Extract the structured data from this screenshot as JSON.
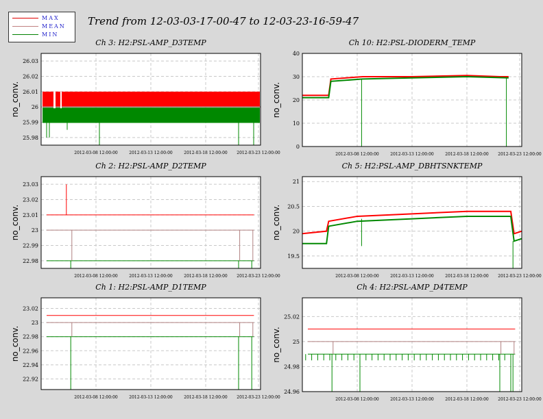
{
  "title": "Trend from 12-03-03-17-00-47 to 12-03-23-16-59-47",
  "legend": [
    {
      "label": "MAX",
      "color": "#e00000"
    },
    {
      "label": "MEAN",
      "color": "#c08080"
    },
    {
      "label": "MIN",
      "color": "#008000"
    }
  ],
  "colors": {
    "max": "#ff0000",
    "mean": "#b08080",
    "min": "#008800",
    "grid": "#c8c8c8"
  },
  "x_ticks": [
    "2012-03-08 12:00:00",
    "2012-03-13 12:00:00",
    "2012-03-18 12:00:00",
    "2012-03-23 12:00:00"
  ],
  "chart_data": [
    {
      "type": "line",
      "title": "Ch 3: H2:PSL-AMP_D3TEMP",
      "ylabel": "no_conv.",
      "ylim": [
        25.975,
        26.035
      ],
      "yticks": [
        "25.98",
        "25.99",
        "26",
        "26.01",
        "26.02",
        "26.03"
      ],
      "series": [
        {
          "name": "MAX",
          "values": [
            [
              0,
              26.01
            ],
            [
              20,
              26.01
            ]
          ]
        },
        {
          "name": "MEAN",
          "values": [
            [
              0,
              26.0
            ],
            [
              20,
              26.0
            ]
          ]
        },
        {
          "name": "MIN",
          "values": [
            [
              0,
              25.99
            ],
            [
              20,
              25.99
            ]
          ]
        }
      ],
      "style": "band"
    },
    {
      "type": "line",
      "title": "Ch 10: H2:PSL-DIODERM_TEMP",
      "ylabel": "no_conv.",
      "ylim": [
        0,
        40
      ],
      "yticks": [
        "0",
        "10",
        "20",
        "30",
        "40"
      ],
      "series": [
        {
          "name": "MAX",
          "values": [
            [
              0,
              22
            ],
            [
              2.4,
              22
            ],
            [
              2.6,
              29
            ],
            [
              5.5,
              30
            ],
            [
              10,
              30
            ],
            [
              15,
              30.5
            ],
            [
              18,
              30
            ],
            [
              18.8,
              30
            ]
          ]
        },
        {
          "name": "MIN",
          "values": [
            [
              0,
              21
            ],
            [
              2.4,
              21
            ],
            [
              2.6,
              28
            ],
            [
              5.5,
              29
            ],
            [
              10,
              29.5
            ],
            [
              15,
              30
            ],
            [
              18.8,
              29.5
            ]
          ]
        }
      ],
      "style": "line"
    },
    {
      "type": "line",
      "title": "Ch 2: H2:PSL-AMP_D2TEMP",
      "ylabel": "no_conv.",
      "ylim": [
        22.975,
        23.035
      ],
      "yticks": [
        "22.98",
        "22.99",
        "23",
        "23.01",
        "23.02",
        "23.03"
      ],
      "series": [
        {
          "name": "MAX",
          "values": [
            [
              0,
              23.01
            ],
            [
              20,
              23.01
            ]
          ]
        },
        {
          "name": "MEAN",
          "values": [
            [
              0,
              23.0
            ],
            [
              20,
              23.0
            ]
          ]
        },
        {
          "name": "MIN",
          "values": [
            [
              0,
              22.98
            ],
            [
              20,
              22.98
            ]
          ]
        }
      ],
      "style": "flat"
    },
    {
      "type": "line",
      "title": "Ch 5: H2:PSL-AMP_DBHTSNKTEMP",
      "ylabel": "no_conv.",
      "ylim": [
        19.25,
        21.1
      ],
      "yticks": [
        "19.5",
        "20",
        "20.5",
        "21"
      ],
      "series": [
        {
          "name": "MAX",
          "values": [
            [
              0,
              19.95
            ],
            [
              2.2,
              20.0
            ],
            [
              2.4,
              20.2
            ],
            [
              5,
              20.3
            ],
            [
              10,
              20.35
            ],
            [
              15,
              20.4
            ],
            [
              19,
              20.4
            ],
            [
              19.3,
              19.95
            ],
            [
              20,
              20.0
            ]
          ]
        },
        {
          "name": "MIN",
          "values": [
            [
              0,
              19.75
            ],
            [
              2.2,
              19.75
            ],
            [
              2.4,
              20.1
            ],
            [
              5,
              20.2
            ],
            [
              10,
              20.25
            ],
            [
              15,
              20.3
            ],
            [
              19,
              20.3
            ],
            [
              19.3,
              19.8
            ],
            [
              20,
              19.85
            ]
          ]
        }
      ],
      "style": "line"
    },
    {
      "type": "line",
      "title": "Ch 1: H2:PSL-AMP_D1TEMP",
      "ylabel": "no_conv.",
      "ylim": [
        22.905,
        23.035
      ],
      "yticks": [
        "22.92",
        "22.94",
        "22.96",
        "22.98",
        "23",
        "23.02"
      ],
      "series": [
        {
          "name": "MAX",
          "values": [
            [
              0,
              23.01
            ],
            [
              20,
              23.01
            ]
          ]
        },
        {
          "name": "MEAN",
          "values": [
            [
              0,
              23.0
            ],
            [
              20,
              23.0
            ]
          ]
        },
        {
          "name": "MIN",
          "values": [
            [
              0,
              22.98
            ],
            [
              20,
              22.98
            ]
          ]
        }
      ],
      "style": "flat"
    },
    {
      "type": "line",
      "title": "Ch 4: H2:PSL-AMP_D4TEMP",
      "ylabel": "no_conv.",
      "ylim": [
        24.96,
        25.035
      ],
      "yticks": [
        "24.96",
        "24.98",
        "25",
        "25.02"
      ],
      "series": [
        {
          "name": "MAX",
          "values": [
            [
              0,
              25.01
            ],
            [
              20,
              25.01
            ]
          ]
        },
        {
          "name": "MEAN",
          "values": [
            [
              0,
              25.0
            ],
            [
              20,
              25.0
            ]
          ]
        },
        {
          "name": "MIN",
          "values": [
            [
              0,
              24.99
            ],
            [
              20,
              24.99
            ]
          ]
        }
      ],
      "style": "flat"
    }
  ]
}
